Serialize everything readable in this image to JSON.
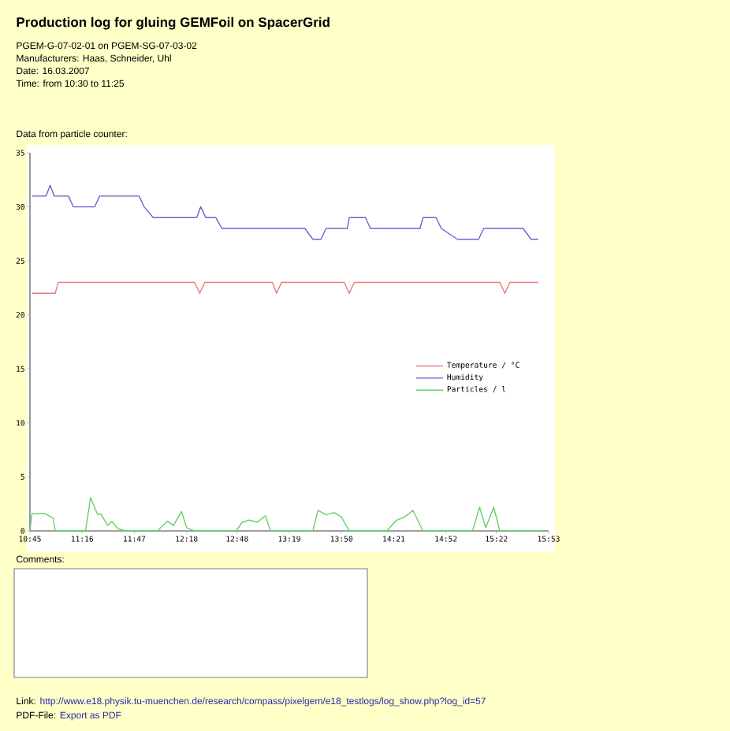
{
  "chart_data": {
    "type": "line",
    "title": "Production log for gluing GEMFoil on SpacerGrid",
    "annotations": [
      "PGEM-G-07-02-01 on PGEM-SG-07-03-02",
      "Manufacturers: Haas, Schneider, Uhl",
      "Date: 16.03.2007",
      "Time: from 10:30 to 11:25",
      "Data from particle counter:",
      "Comments:",
      "Link:",
      "http://www.e18.physik.tu-muenchen.de/research/compass/pixelgem/e18_testlogs/log_show.php?log_id=57",
      "PDF-File:",
      "Export as PDF"
    ],
    "xlim": [
      10.75,
      15.8833
    ],
    "xticks": [
      {
        "value": 10.75,
        "label": "10:45"
      },
      {
        "value": 11.2667,
        "label": "11:16"
      },
      {
        "value": 11.7833,
        "label": "11:47"
      },
      {
        "value": 12.3,
        "label": "12:18"
      },
      {
        "value": 12.8,
        "label": "12:48"
      },
      {
        "value": 13.3167,
        "label": "13:19"
      },
      {
        "value": 13.8333,
        "label": "13:50"
      },
      {
        "value": 14.35,
        "label": "14:21"
      },
      {
        "value": 14.8667,
        "label": "14:52"
      },
      {
        "value": 15.3667,
        "label": "15:22"
      },
      {
        "value": 15.8833,
        "label": "15:53"
      }
    ],
    "ylim": [
      0,
      35
    ],
    "yticks": [
      0,
      5,
      10,
      15,
      20,
      25,
      30,
      35
    ],
    "legend": "right",
    "line_style": "solid",
    "series": [
      {
        "name": "Temperature / °C",
        "color": "#e87878",
        "x": [
          10.77,
          11.0,
          11.03,
          12.38,
          12.43,
          12.48,
          13.15,
          13.19,
          13.24,
          13.86,
          13.91,
          13.96,
          15.4,
          15.45,
          15.5,
          15.78
        ],
        "values": [
          22,
          22,
          23,
          23,
          22,
          23,
          23,
          22,
          23,
          23,
          22,
          23,
          23,
          22,
          23,
          23
        ]
      },
      {
        "name": "Humidity",
        "color": "#6464d2",
        "x": [
          10.77,
          10.8,
          10.91,
          10.95,
          10.99,
          11.13,
          11.18,
          11.39,
          11.44,
          11.83,
          11.88,
          11.97,
          12.4,
          12.44,
          12.49,
          12.59,
          12.65,
          13.47,
          13.55,
          13.63,
          13.68,
          13.89,
          13.91,
          14.07,
          14.12,
          14.61,
          14.64,
          14.77,
          14.82,
          14.98,
          15.19,
          15.24,
          15.63,
          15.71,
          15.78
        ],
        "values": [
          31,
          31,
          31,
          32,
          31,
          31,
          30,
          30,
          31,
          31,
          30,
          29,
          29,
          30,
          29,
          29,
          28,
          28,
          27,
          27,
          28,
          28,
          29,
          29,
          28,
          28,
          29,
          29,
          28,
          27,
          27,
          28,
          28,
          27,
          27
        ]
      },
      {
        "name": "Particles / l",
        "color": "#64d264",
        "x": [
          10.75,
          10.77,
          10.9,
          10.98,
          11.0,
          11.3,
          11.35,
          11.42,
          11.45,
          11.52,
          11.56,
          11.62,
          11.7,
          12.01,
          12.11,
          12.17,
          12.25,
          12.3,
          12.38,
          12.79,
          12.85,
          12.92,
          13.0,
          13.08,
          13.13,
          13.55,
          13.6,
          13.68,
          13.76,
          13.83,
          13.91,
          14.28,
          14.38,
          14.46,
          14.54,
          14.64,
          15.13,
          15.2,
          15.26,
          15.34,
          15.4,
          15.83
        ],
        "values": [
          0,
          1.6,
          1.6,
          1.2,
          0,
          0,
          3.1,
          1.5,
          1.6,
          0.5,
          0.9,
          0.2,
          0,
          0,
          0.9,
          0.5,
          1.8,
          0.3,
          0,
          0,
          0.8,
          1.0,
          0.8,
          1.4,
          0,
          0,
          1.9,
          1.5,
          1.7,
          1.3,
          0,
          0,
          1.0,
          1.3,
          1.9,
          0,
          0,
          2.2,
          0.3,
          2.2,
          0,
          0
        ]
      }
    ]
  }
}
